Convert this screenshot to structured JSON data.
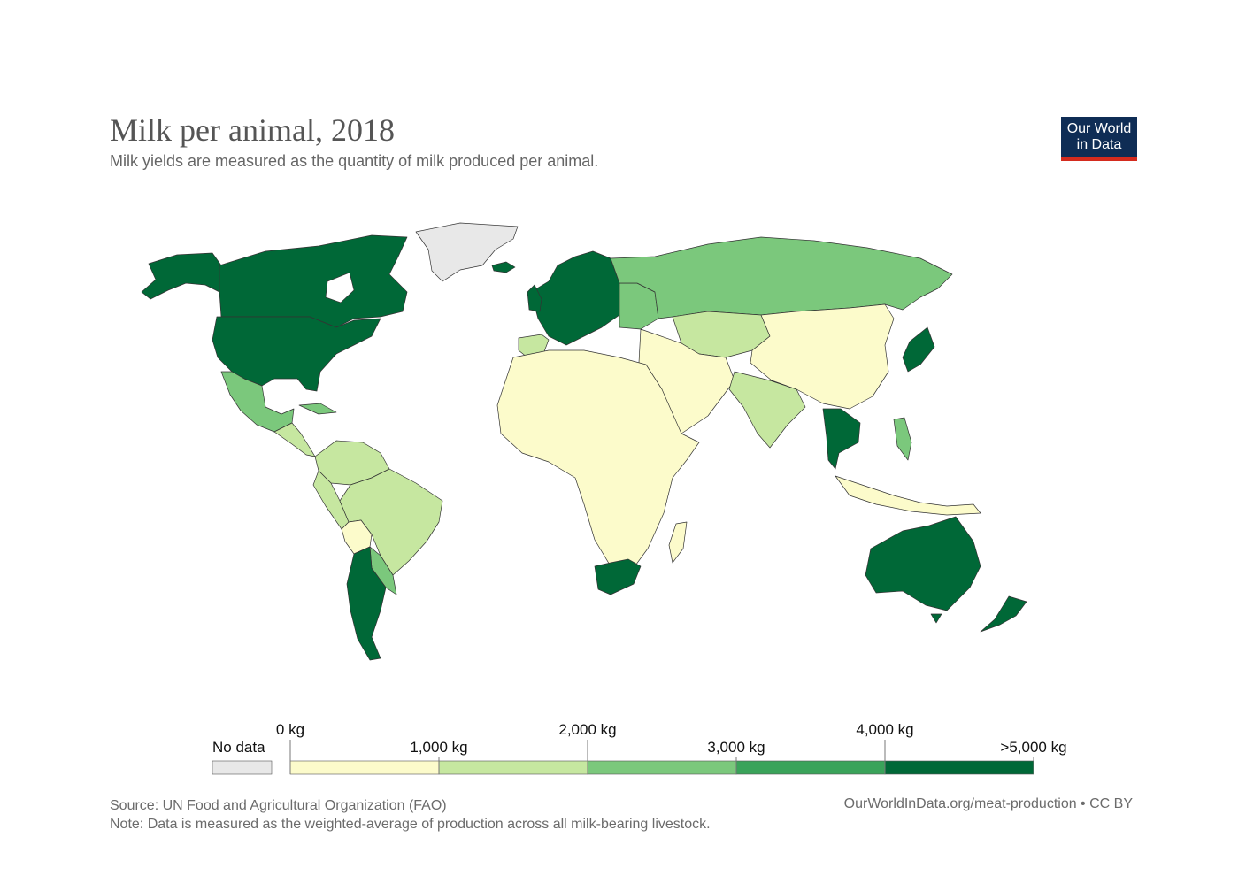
{
  "header": {
    "title": "Milk per animal, 2018",
    "subtitle": "Milk yields are measured as the quantity of milk produced per animal."
  },
  "logo": {
    "line1": "Our World",
    "line2": "in Data"
  },
  "colors": {
    "no_data": "#e8e8e8",
    "bin0": "#fcfbcb",
    "bin1": "#c6e7a0",
    "bin2": "#7bc87c",
    "bin3": "#3aa35a",
    "bin4": "#006837",
    "border": "#333333",
    "brand_bg": "#0f2d55",
    "brand_accent": "#d42b1e"
  },
  "legend": {
    "no_data_label": "No data",
    "tick_labels": [
      "0 kg",
      "1,000 kg",
      "2,000 kg",
      "3,000 kg",
      "4,000 kg",
      ">5,000 kg"
    ]
  },
  "footer": {
    "source": "Source: UN Food and Agricultural Organization (FAO)",
    "note": "Note: Data is measured as the weighted-average of production across all milk-bearing livestock.",
    "url": "OurWorldInData.org/meat-production • CC BY"
  }
}
